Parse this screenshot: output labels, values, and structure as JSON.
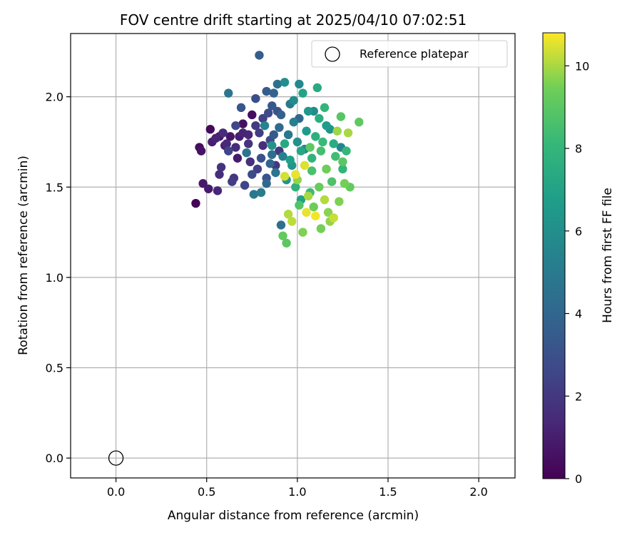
{
  "chart_data": {
    "type": "scatter",
    "title": "FOV centre drift starting at 2025/04/10 07:02:51",
    "xlabel": "Angular distance from reference (arcmin)",
    "ylabel": "Rotation from reference (arcmin)",
    "xlim": [
      -0.25,
      2.2
    ],
    "ylim": [
      -0.11,
      2.35
    ],
    "xticks": [
      0.0,
      0.5,
      1.0,
      1.5,
      2.0
    ],
    "yticks": [
      0.0,
      0.5,
      1.0,
      1.5,
      2.0
    ],
    "xtick_labels": [
      "0.0",
      "0.5",
      "1.0",
      "1.5",
      "2.0"
    ],
    "ytick_labels": [
      "0.0",
      "0.5",
      "1.0",
      "1.5",
      "2.0"
    ],
    "grid": true,
    "legend_position": "top-right",
    "legend": [
      {
        "label": "Reference platepar",
        "marker": "open-circle"
      }
    ],
    "reference_point": {
      "x": 0.0,
      "y": 0.0
    },
    "colorbar": {
      "label": "Hours from first FF file",
      "colormap": "viridis",
      "range": [
        0,
        10.8
      ],
      "ticks": [
        0,
        2,
        4,
        6,
        8,
        10
      ],
      "tick_labels": [
        "0",
        "2",
        "4",
        "6",
        "8",
        "10"
      ]
    },
    "series": [
      {
        "values": [
          [
            0.44,
            1.41,
            0.1
          ],
          [
            0.46,
            1.72,
            0.4
          ],
          [
            0.47,
            1.7,
            0.6
          ],
          [
            0.48,
            1.52,
            0.8
          ],
          [
            0.51,
            1.49,
            0.9
          ],
          [
            0.52,
            1.82,
            0.3
          ],
          [
            0.53,
            1.75,
            1.0
          ],
          [
            0.55,
            1.77,
            1.2
          ],
          [
            0.56,
            1.48,
            1.3
          ],
          [
            0.57,
            1.57,
            1.6
          ],
          [
            0.58,
            1.61,
            1.8
          ],
          [
            0.59,
            1.8,
            1.5
          ],
          [
            0.6,
            1.73,
            1.1
          ],
          [
            0.61,
            1.74,
            1.4
          ],
          [
            0.63,
            1.78,
            0.7
          ],
          [
            0.64,
            1.53,
            2.2
          ],
          [
            0.65,
            1.55,
            1.9
          ],
          [
            0.66,
            1.84,
            2.6
          ],
          [
            0.67,
            1.66,
            0.9
          ],
          [
            0.68,
            1.78,
            1.0
          ],
          [
            0.69,
            1.94,
            3.2
          ],
          [
            0.7,
            1.85,
            0.5
          ],
          [
            0.71,
            1.51,
            2.5
          ],
          [
            0.72,
            1.69,
            4.6
          ],
          [
            0.73,
            1.79,
            1.3
          ],
          [
            0.74,
            1.64,
            1.7
          ],
          [
            0.75,
            1.9,
            0.4
          ],
          [
            0.76,
            1.46,
            4.9
          ],
          [
            0.77,
            1.84,
            2.1
          ],
          [
            0.78,
            1.6,
            2.3
          ],
          [
            0.79,
            2.23,
            3.6
          ],
          [
            0.8,
            1.66,
            3.0
          ],
          [
            0.81,
            1.73,
            1.6
          ],
          [
            0.82,
            1.84,
            5.4
          ],
          [
            0.83,
            1.52,
            4.1
          ],
          [
            0.84,
            1.91,
            2.8
          ],
          [
            0.85,
            1.76,
            2.7
          ],
          [
            0.86,
            1.68,
            4.3
          ],
          [
            0.87,
            1.79,
            3.4
          ],
          [
            0.88,
            1.62,
            1.9
          ],
          [
            0.89,
            1.92,
            3.1
          ],
          [
            0.9,
            1.7,
            2.0
          ],
          [
            0.91,
            1.29,
            4.4
          ],
          [
            0.92,
            1.23,
            9.2
          ],
          [
            0.93,
            1.56,
            10.4
          ],
          [
            0.94,
            1.19,
            9.0
          ],
          [
            0.95,
            1.35,
            10.1
          ],
          [
            0.96,
            1.65,
            6.8
          ],
          [
            0.97,
            1.31,
            10.2
          ],
          [
            0.98,
            1.86,
            5.2
          ],
          [
            0.99,
            1.57,
            10.6
          ],
          [
            1.0,
            1.54,
            9.8
          ],
          [
            1.01,
            1.4,
            8.8
          ],
          [
            1.02,
            1.7,
            7.2
          ],
          [
            1.03,
            1.25,
            9.6
          ],
          [
            1.04,
            1.62,
            10.5
          ],
          [
            1.05,
            1.81,
            6.6
          ],
          [
            1.06,
            1.45,
            10.0
          ],
          [
            1.07,
            1.72,
            9.1
          ],
          [
            1.08,
            1.59,
            8.6
          ],
          [
            1.09,
            1.92,
            5.8
          ],
          [
            1.1,
            1.34,
            10.7
          ],
          [
            1.11,
            2.05,
            7.4
          ],
          [
            1.12,
            1.5,
            9.3
          ],
          [
            1.13,
            1.27,
            9.5
          ],
          [
            1.14,
            1.75,
            8.2
          ],
          [
            1.15,
            1.94,
            8.0
          ],
          [
            1.16,
            1.6,
            9.4
          ],
          [
            1.17,
            1.36,
            9.7
          ],
          [
            1.18,
            1.82,
            6.2
          ],
          [
            1.19,
            1.53,
            8.7
          ],
          [
            1.2,
            1.33,
            10.3
          ],
          [
            1.21,
            1.67,
            8.4
          ],
          [
            1.22,
            1.81,
            9.9
          ],
          [
            1.23,
            1.42,
            9.6
          ],
          [
            1.24,
            1.72,
            5.5
          ],
          [
            1.25,
            1.64,
            9.0
          ],
          [
            1.26,
            1.52,
            9.5
          ],
          [
            1.27,
            1.7,
            8.1
          ],
          [
            1.28,
            1.8,
            10.0
          ],
          [
            1.29,
            1.5,
            9.2
          ],
          [
            1.34,
            1.86,
            9.1
          ],
          [
            0.87,
            2.02,
            3.8
          ],
          [
            0.89,
            2.07,
            4.5
          ],
          [
            0.93,
            2.08,
            6.0
          ],
          [
            1.01,
            2.07,
            5.7
          ],
          [
            1.03,
            2.02,
            7.0
          ],
          [
            0.98,
            1.98,
            5.9
          ],
          [
            0.83,
            2.03,
            3.5
          ],
          [
            0.62,
            2.02,
            4.8
          ],
          [
            0.77,
            1.99,
            2.9
          ],
          [
            0.96,
            1.96,
            4.9
          ],
          [
            1.06,
            1.92,
            6.5
          ],
          [
            1.12,
            1.88,
            7.6
          ],
          [
            0.9,
            1.83,
            4.2
          ],
          [
            0.95,
            1.79,
            5.0
          ],
          [
            1.0,
            1.75,
            6.1
          ],
          [
            1.04,
            1.71,
            5.6
          ],
          [
            0.92,
            1.67,
            5.3
          ],
          [
            0.85,
            1.63,
            3.9
          ],
          [
            0.88,
            1.58,
            4.7
          ],
          [
            0.94,
            1.54,
            6.3
          ],
          [
            0.99,
            1.5,
            7.8
          ],
          [
            1.07,
            1.47,
            8.3
          ],
          [
            1.02,
            1.43,
            6.9
          ],
          [
            1.09,
            1.39,
            9.4
          ],
          [
            1.05,
            1.36,
            10.6
          ],
          [
            1.15,
            1.43,
            10.1
          ],
          [
            1.18,
            1.31,
            9.8
          ],
          [
            0.97,
            1.62,
            6.4
          ],
          [
            1.08,
            1.66,
            7.9
          ],
          [
            1.13,
            1.7,
            8.5
          ],
          [
            0.81,
            1.88,
            2.4
          ],
          [
            0.86,
            1.95,
            3.3
          ],
          [
            0.91,
            1.9,
            3.7
          ],
          [
            1.01,
            1.88,
            4.0
          ],
          [
            0.79,
            1.8,
            2.2
          ],
          [
            0.73,
            1.74,
            1.8
          ],
          [
            0.7,
            1.8,
            1.2
          ],
          [
            0.66,
            1.72,
            1.5
          ],
          [
            0.62,
            1.7,
            2.5
          ],
          [
            0.57,
            1.78,
            0.8
          ],
          [
            0.75,
            1.57,
            2.8
          ],
          [
            0.83,
            1.55,
            3.2
          ],
          [
            0.8,
            1.47,
            5.1
          ],
          [
            0.86,
            1.73,
            6.2
          ],
          [
            0.93,
            1.74,
            7.3
          ],
          [
            1.1,
            1.78,
            7.7
          ],
          [
            1.16,
            1.84,
            6.7
          ],
          [
            1.2,
            1.74,
            7.5
          ],
          [
            1.24,
            1.89,
            8.9
          ],
          [
            1.25,
            1.6,
            8.0
          ]
        ]
      }
    ]
  }
}
